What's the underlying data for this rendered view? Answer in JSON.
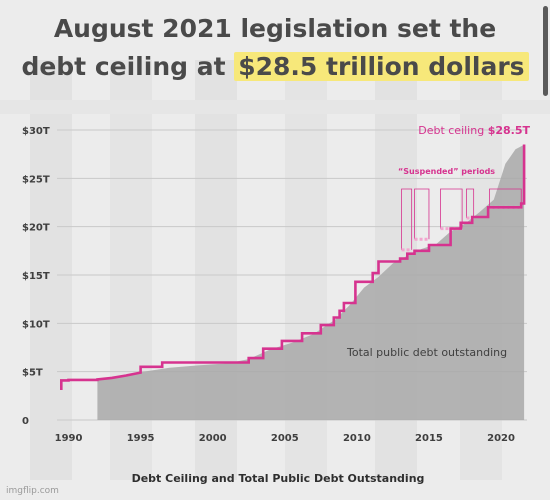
{
  "headline": {
    "line1": "August 2021 legislation set the",
    "line2_prefix": "debt ceiling at ",
    "line2_highlight": "$28.5 trillion dollars"
  },
  "watermark": "imgflip.com",
  "colors": {
    "ceiling_line": "#d6338f",
    "debt_area": "#a9a9a9",
    "highlight": "#f7e87a",
    "headline_text": "#4a4a4a"
  },
  "chart_data": {
    "type": "area",
    "title": "",
    "xlabel": "Debt Ceiling and Total Public Debt Outstanding",
    "ylabel": "",
    "xlim": [
      1989.2,
      2021.8
    ],
    "ylim": [
      0,
      30
    ],
    "grid": true,
    "x_ticks": [
      1990,
      1995,
      2000,
      2005,
      2010,
      2015,
      2020
    ],
    "x_tick_labels": [
      "1990",
      "1995",
      "2000",
      "2005",
      "2010",
      "2015",
      "2020"
    ],
    "y_ticks": [
      0,
      5,
      10,
      15,
      20,
      25,
      30
    ],
    "y_tick_labels": [
      "0",
      "$5T",
      "$10T",
      "$15T",
      "$20T",
      "$25T",
      "$30T"
    ],
    "series": [
      {
        "name": "Debt ceiling",
        "kind": "step",
        "points": [
          [
            1989.5,
            3.1
          ],
          [
            1989.5,
            4.1
          ],
          [
            1990.0,
            4.1
          ],
          [
            1990.0,
            4.15
          ],
          [
            1992.0,
            4.15
          ],
          [
            1992.0,
            4.2
          ],
          [
            1993.0,
            4.35
          ],
          [
            1994.0,
            4.6
          ],
          [
            1995.0,
            4.9
          ],
          [
            1995.0,
            5.5
          ],
          [
            1996.5,
            5.5
          ],
          [
            1996.5,
            5.95
          ],
          [
            2002.5,
            5.95
          ],
          [
            2002.5,
            6.4
          ],
          [
            2003.5,
            6.4
          ],
          [
            2003.5,
            7.38
          ],
          [
            2004.8,
            7.38
          ],
          [
            2004.8,
            8.18
          ],
          [
            2006.2,
            8.18
          ],
          [
            2006.2,
            8.97
          ],
          [
            2007.5,
            8.97
          ],
          [
            2007.5,
            9.82
          ],
          [
            2008.4,
            9.82
          ],
          [
            2008.4,
            10.6
          ],
          [
            2008.8,
            10.6
          ],
          [
            2008.8,
            11.3
          ],
          [
            2009.1,
            11.3
          ],
          [
            2009.1,
            12.1
          ],
          [
            2009.9,
            12.1
          ],
          [
            2009.9,
            14.3
          ],
          [
            2011.1,
            14.3
          ],
          [
            2011.1,
            15.2
          ],
          [
            2011.5,
            15.2
          ],
          [
            2011.5,
            16.4
          ],
          [
            2013.0,
            16.4
          ],
          [
            2013.0,
            16.7
          ],
          [
            2013.5,
            16.7
          ],
          [
            2013.5,
            17.2
          ],
          [
            2014.0,
            17.2
          ],
          [
            2014.0,
            17.5
          ],
          [
            2015.0,
            17.5
          ],
          [
            2015.0,
            18.1
          ],
          [
            2016.5,
            18.1
          ],
          [
            2016.5,
            19.8
          ],
          [
            2017.2,
            19.8
          ],
          [
            2017.2,
            20.4
          ],
          [
            2018.0,
            20.4
          ],
          [
            2018.0,
            21.0
          ],
          [
            2019.1,
            21.0
          ],
          [
            2019.1,
            22.0
          ],
          [
            2021.4,
            22.0
          ],
          [
            2021.4,
            22.4
          ],
          [
            2021.6,
            22.4
          ],
          [
            2021.6,
            28.5
          ]
        ]
      },
      {
        "name": "Total public debt outstanding",
        "kind": "area",
        "points": [
          [
            1992.0,
            0.0
          ],
          [
            1992.0,
            4.2
          ],
          [
            1993.0,
            4.4
          ],
          [
            1995.0,
            4.95
          ],
          [
            1997.0,
            5.4
          ],
          [
            1999.0,
            5.65
          ],
          [
            2001.0,
            5.85
          ],
          [
            2002.5,
            6.3
          ],
          [
            2004.0,
            7.3
          ],
          [
            2005.5,
            8.0
          ],
          [
            2007.0,
            8.9
          ],
          [
            2008.5,
            10.4
          ],
          [
            2009.5,
            11.9
          ],
          [
            2010.5,
            13.7
          ],
          [
            2011.5,
            14.8
          ],
          [
            2012.5,
            16.2
          ],
          [
            2013.5,
            17.0
          ],
          [
            2014.5,
            17.7
          ],
          [
            2015.5,
            18.2
          ],
          [
            2016.5,
            19.5
          ],
          [
            2017.5,
            20.3
          ],
          [
            2018.5,
            21.5
          ],
          [
            2019.5,
            22.8
          ],
          [
            2020.3,
            26.5
          ],
          [
            2021.0,
            28.0
          ],
          [
            2021.5,
            28.4
          ],
          [
            2021.6,
            28.4
          ],
          [
            2021.6,
            0.0
          ]
        ]
      }
    ],
    "suspended_periods": [
      [
        2013.1,
        2013.8
      ],
      [
        2014.0,
        2015.0
      ],
      [
        2015.8,
        2017.3
      ],
      [
        2017.6,
        2018.1
      ],
      [
        2019.2,
        2021.4
      ]
    ],
    "annotations": {
      "suspended_label": "“Suspended” periods",
      "debt_label": "Total public debt outstanding",
      "ceiling_label": "Debt ceiling ",
      "ceiling_value": "$28.5T"
    }
  }
}
